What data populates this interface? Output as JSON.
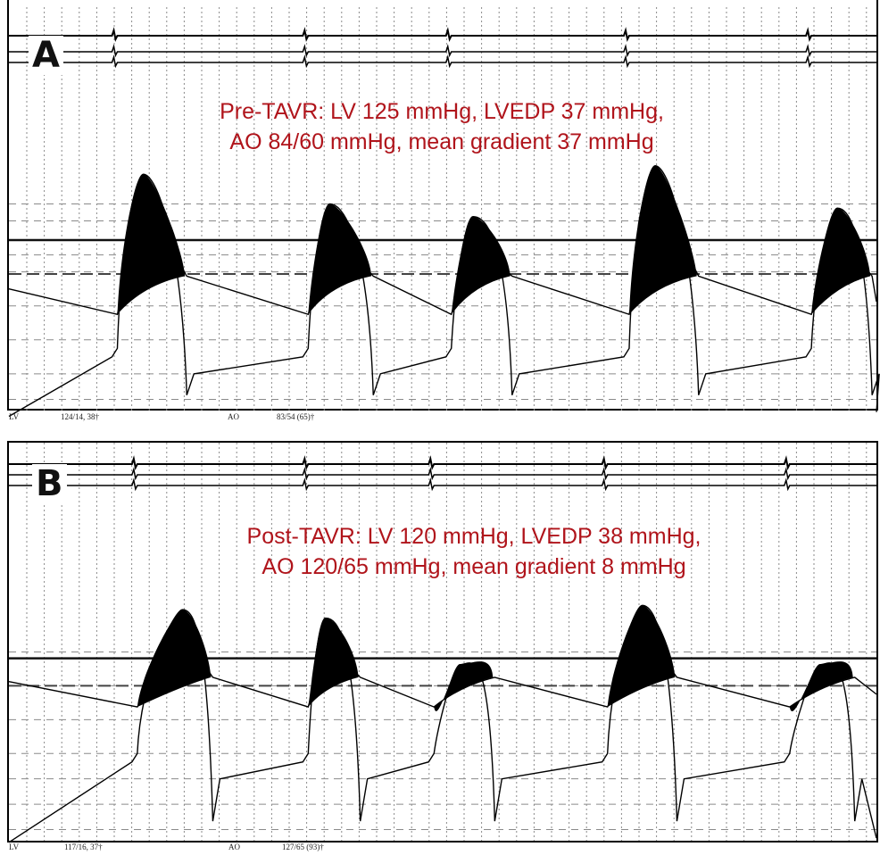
{
  "chart_data": [
    {
      "type": "line",
      "panel": "A",
      "annotation": [
        "Pre-TAVR: LV 125 mmHg, LVEDP 37 mmHg,",
        "AO 84/60 mmHg, mean gradient 37 mmHg"
      ],
      "series": [
        {
          "name": "LV",
          "peak_mmHg": 125,
          "lvedp_mmHg": 37
        },
        {
          "name": "AO",
          "systolic_mmHg": 84,
          "diastolic_mmHg": 60
        }
      ],
      "mean_gradient_mmHg": 37,
      "footer": {
        "lv_label": "LV",
        "lv_value": "124/14, 38†",
        "ao_label": "AO",
        "ao_value": "83/54 (65)†"
      },
      "beats": [
        {
          "start": 0.125,
          "peak": 0.155,
          "peakY": 0.41,
          "end": 0.205
        },
        {
          "start": 0.345,
          "peak": 0.37,
          "peakY": 0.48,
          "end": 0.42
        },
        {
          "start": 0.51,
          "peak": 0.535,
          "peakY": 0.51,
          "end": 0.58
        },
        {
          "start": 0.715,
          "peak": 0.745,
          "peakY": 0.39,
          "end": 0.795
        },
        {
          "start": 0.925,
          "peak": 0.955,
          "peakY": 0.49,
          "end": 0.995
        }
      ],
      "grid": true
    },
    {
      "type": "line",
      "panel": "B",
      "annotation": [
        "Post-TAVR: LV 120 mmHg, LVEDP 38 mmHg,",
        "AO 120/65 mmHg, mean gradient 8 mmHg"
      ],
      "series": [
        {
          "name": "LV",
          "peak_mmHg": 120,
          "lvedp_mmHg": 38
        },
        {
          "name": "AO",
          "systolic_mmHg": 120,
          "diastolic_mmHg": 65
        }
      ],
      "mean_gradient_mmHg": 8,
      "footer": {
        "lv_label": "LV",
        "lv_value": "117/16, 37†",
        "ao_label": "AO",
        "ao_value": "127/65 (93)†"
      },
      "beats": [
        {
          "start": 0.148,
          "peak": 0.2,
          "peakY": 0.42,
          "end": 0.235
        },
        {
          "start": 0.345,
          "peak": 0.365,
          "peakY": 0.44,
          "end": 0.405
        },
        {
          "start": 0.49,
          "peak": 0.52,
          "peakY": 0.55,
          "end": 0.56
        },
        {
          "start": 0.69,
          "peak": 0.73,
          "peakY": 0.41,
          "end": 0.77
        },
        {
          "start": 0.9,
          "peak": 0.935,
          "peakY": 0.55,
          "end": 0.975
        }
      ],
      "grid": true
    }
  ],
  "panels": {
    "a": {
      "letter": "A",
      "annotation_line1": "Pre-TAVR: LV 125 mmHg, LVEDP 37 mmHg,",
      "annotation_line2": "AO 84/60 mmHg, mean gradient 37 mmHg",
      "footer_lv": "LV",
      "footer_lv_value": "124/14, 38†",
      "footer_ao": "AO",
      "footer_ao_value": "83/54 (65)†"
    },
    "b": {
      "letter": "B",
      "annotation_line1": "Post-TAVR: LV 120 mmHg, LVEDP 38 mmHg,",
      "annotation_line2": "AO 120/65 mmHg, mean gradient 8 mmHg",
      "footer_lv": "LV",
      "footer_lv_value": "117/16, 37†",
      "footer_ao": "AO",
      "footer_ao_value": "127/65 (93)†"
    }
  },
  "colors": {
    "annotation": "#b0141b",
    "trace": "#000000",
    "grid": "#8a8a8a",
    "background": "#ffffff"
  }
}
